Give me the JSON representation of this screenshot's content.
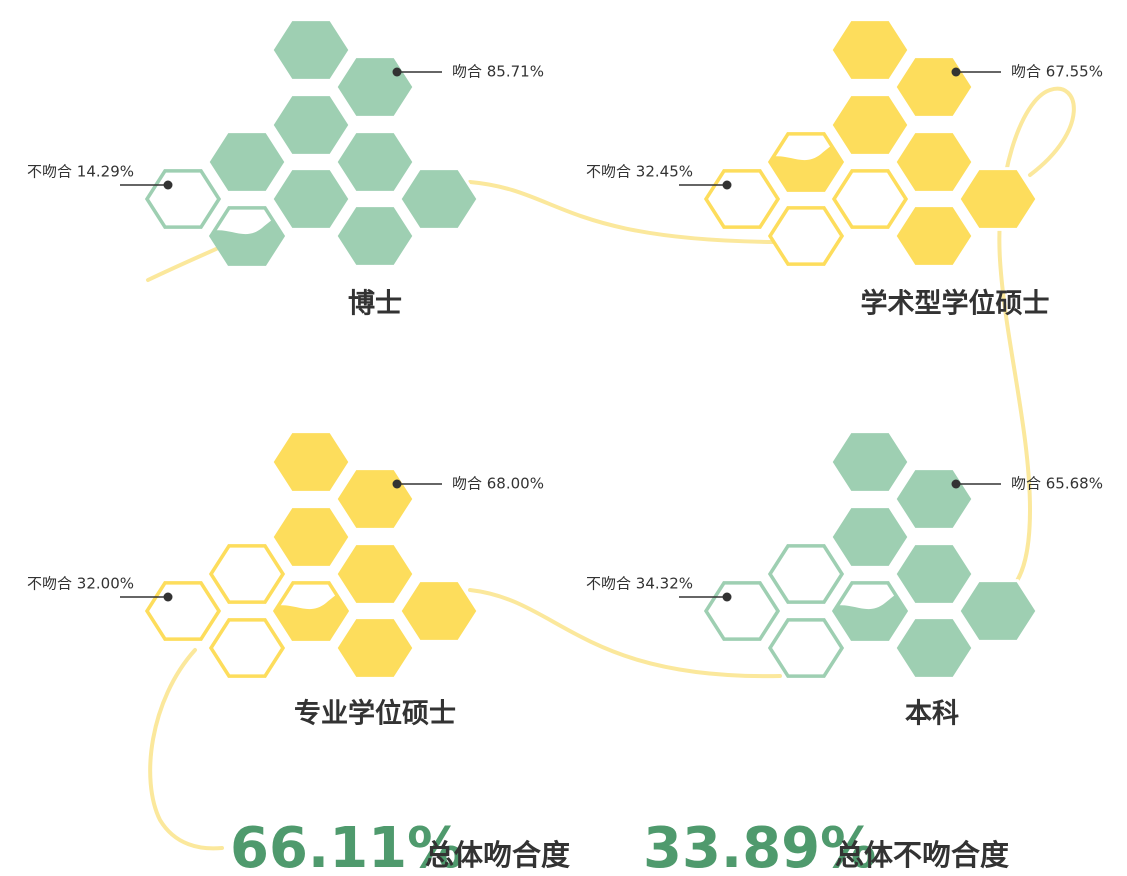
{
  "groups": [
    {
      "title": "博士",
      "match": "吻合 85.71%",
      "mismatch": "不吻合 14.29%",
      "color": "#9ecfb2"
    },
    {
      "title": "学术型学位硕士",
      "match": "吻合 67.55%",
      "mismatch": "不吻合 32.45%",
      "color": "#fddd5c"
    },
    {
      "title": "专业学位硕士",
      "match": "吻合 68.00%",
      "mismatch": "不吻合 32.00%",
      "color": "#fddd5c"
    },
    {
      "title": "本科",
      "match": "吻合 65.68%",
      "mismatch": "不吻合 34.32%",
      "color": "#9ecfb2"
    }
  ],
  "summary": {
    "match_value": "66.11%",
    "match_label": "总体吻合度",
    "mismatch_value": "33.89%",
    "mismatch_label": "总体不吻合度"
  }
}
